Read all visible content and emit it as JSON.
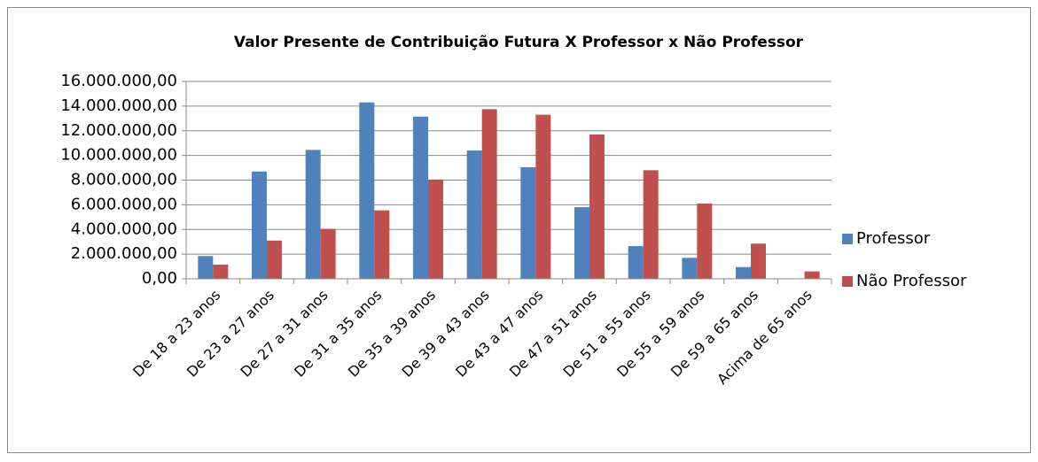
{
  "chart_data": {
    "type": "bar",
    "title": "Valor Presente de Contribuição Futura  X Professor x Não Professor",
    "categories": [
      "De 18 a 23 anos",
      "De 23 a 27 anos",
      "De 27 a 31 anos",
      "De 31 a 35 anos",
      "De 35 a 39 anos",
      "De 39 a 43 anos",
      "De 43 a 47 anos",
      "De 47 a 51 anos",
      "De 51 a 55 anos",
      "De 55 a 59 anos",
      "De 59 a 65 anos",
      "Acima de 65 anos"
    ],
    "series": [
      {
        "name": "Professor",
        "color": "#4f81bd",
        "values": [
          1850000,
          8700000,
          10450000,
          14300000,
          13150000,
          10400000,
          9050000,
          5800000,
          2650000,
          1700000,
          950000,
          0
        ]
      },
      {
        "name": "Não Professor",
        "color": "#c0504d",
        "values": [
          1150000,
          3100000,
          4050000,
          5550000,
          8050000,
          13750000,
          13300000,
          11700000,
          8800000,
          6100000,
          2850000,
          600000
        ]
      }
    ],
    "ylim": [
      0,
      16000000
    ],
    "yticks": [
      {
        "value": 0,
        "label": "0,00"
      },
      {
        "value": 2000000,
        "label": "2.000.000,00"
      },
      {
        "value": 4000000,
        "label": "4.000.000,00"
      },
      {
        "value": 6000000,
        "label": "6.000.000,00"
      },
      {
        "value": 8000000,
        "label": "8.000.000,00"
      },
      {
        "value": 10000000,
        "label": "10.000.000,00"
      },
      {
        "value": 12000000,
        "label": "12.000.000,00"
      },
      {
        "value": 14000000,
        "label": "14.000.000,00"
      },
      {
        "value": 16000000,
        "label": "16.000.000,00"
      }
    ],
    "grid": true,
    "legend": "right"
  }
}
